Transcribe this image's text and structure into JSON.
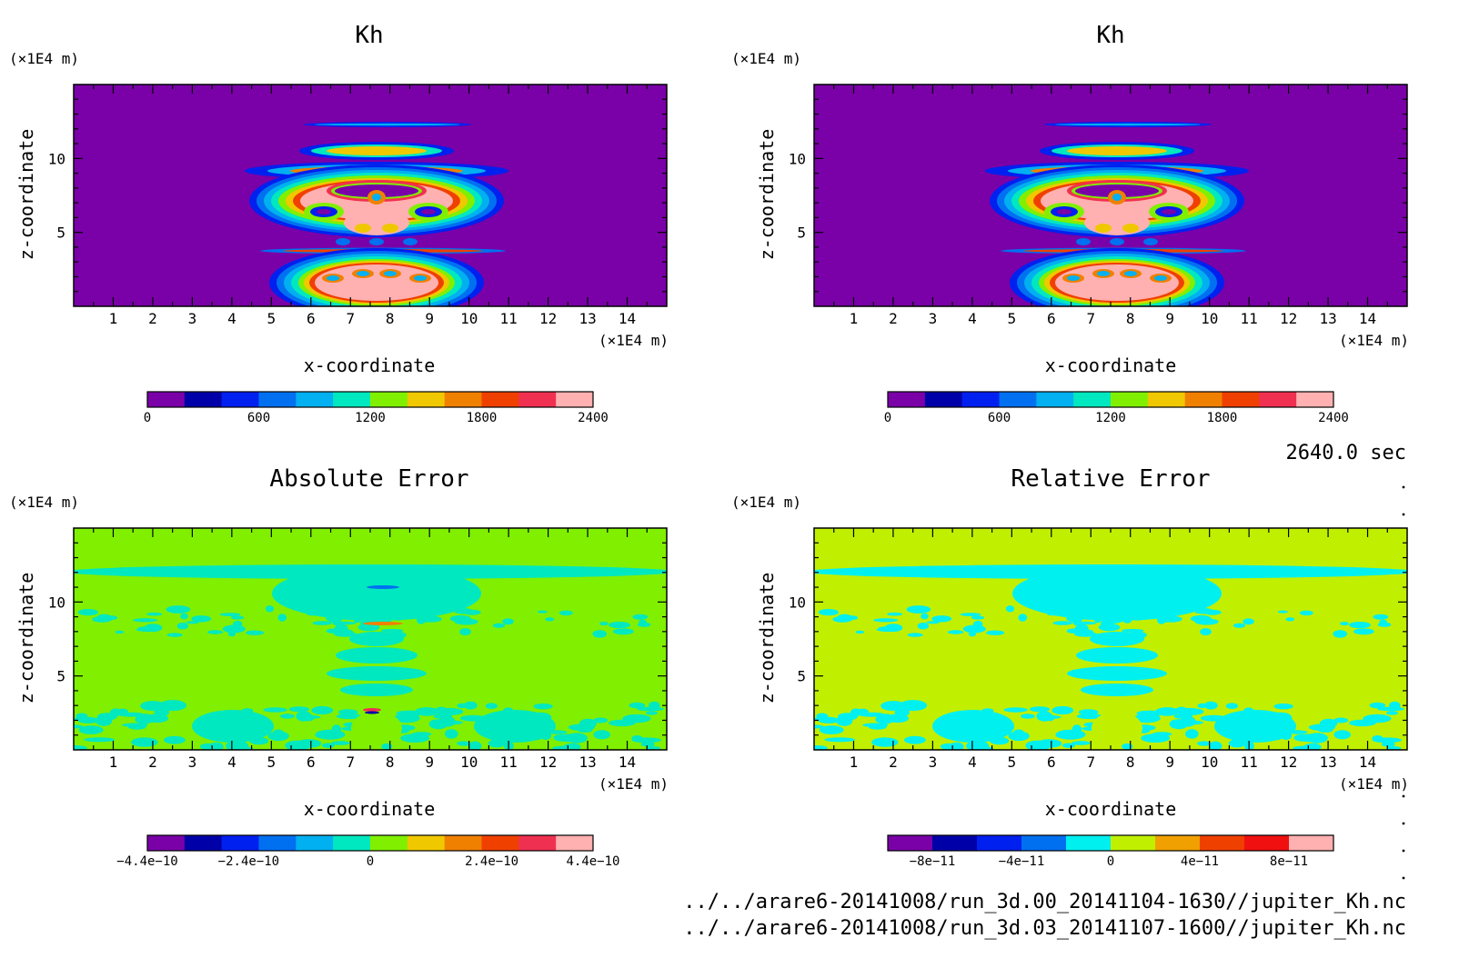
{
  "time_label": "2640.0 sec",
  "file_paths": [
    "../../arare6-20141008/run_3d.00_20141104-1630//jupiter_Kh.nc",
    "../../arare6-20141008/run_3d.03_20141107-1600//jupiter_Kh.nc"
  ],
  "colors": {
    "kh_levels": [
      "#7a00a8",
      "#0000a8",
      "#0020f0",
      "#0070f0",
      "#00b0f0",
      "#00e8c0",
      "#80f000",
      "#f0c800",
      "#f08000",
      "#f04000",
      "#f03050",
      "#ffb0b0"
    ],
    "abs_levels": [
      "#7a00a8",
      "#0000a8",
      "#0020f0",
      "#0070f0",
      "#00b0f0",
      "#00e8c0",
      "#80f000",
      "#f0c800",
      "#f08000",
      "#f04000",
      "#f03050",
      "#ffb0b0"
    ],
    "rel_levels": [
      "#7a00a8",
      "#0000a8",
      "#0020f0",
      "#0070f0",
      "#00f0f0",
      "#c0f000",
      "#f0a000",
      "#f04000",
      "#f01010",
      "#ffb0b0"
    ]
  },
  "chart_data": [
    {
      "type": "heatmap",
      "title": "Kh",
      "xlabel": "x-coordinate",
      "ylabel": "z-coordinate",
      "x_unit": "(×1E4 m)",
      "y_unit": "(×1E4 m)",
      "xlim": [
        0,
        15
      ],
      "ylim": [
        0,
        15
      ],
      "xticks": [
        1,
        2,
        3,
        4,
        5,
        6,
        7,
        8,
        9,
        10,
        11,
        12,
        13,
        14
      ],
      "yticks": [
        5,
        10
      ],
      "colorbar": {
        "range": [
          0,
          2400
        ],
        "levels": 12,
        "tick_values": [
          0,
          600,
          1200,
          1800,
          2400
        ],
        "tick_labels": [
          "0",
          "600",
          "1200",
          "1800",
          "2400"
        ]
      }
    },
    {
      "type": "heatmap",
      "title": "Kh",
      "xlabel": "x-coordinate",
      "ylabel": "z-coordinate",
      "x_unit": "(×1E4 m)",
      "y_unit": "(×1E4 m)",
      "xlim": [
        0,
        15
      ],
      "ylim": [
        0,
        15
      ],
      "xticks": [
        1,
        2,
        3,
        4,
        5,
        6,
        7,
        8,
        9,
        10,
        11,
        12,
        13,
        14
      ],
      "yticks": [
        5,
        10
      ],
      "colorbar": {
        "range": [
          0,
          2400
        ],
        "levels": 12,
        "tick_values": [
          0,
          600,
          1200,
          1800,
          2400
        ],
        "tick_labels": [
          "0",
          "600",
          "1200",
          "1800",
          "2400"
        ]
      }
    },
    {
      "type": "heatmap",
      "title": "Absolute Error",
      "xlabel": "x-coordinate",
      "ylabel": "z-coordinate",
      "x_unit": "(×1E4 m)",
      "y_unit": "(×1E4 m)",
      "xlim": [
        0,
        15
      ],
      "ylim": [
        0,
        15
      ],
      "xticks": [
        1,
        2,
        3,
        4,
        5,
        6,
        7,
        8,
        9,
        10,
        11,
        12,
        13,
        14
      ],
      "yticks": [
        5,
        10
      ],
      "colorbar": {
        "range": [
          -4.4e-10,
          4.4e-10
        ],
        "levels": 12,
        "tick_values": [
          -4.4e-10,
          -2.4e-10,
          0,
          2.4e-10,
          4.4e-10
        ],
        "tick_labels": [
          "−4.4e−10",
          "−2.4e−10",
          "0",
          "2.4e−10",
          "4.4e−10"
        ]
      }
    },
    {
      "type": "heatmap",
      "title": "Relative Error",
      "xlabel": "x-coordinate",
      "ylabel": "z-coordinate",
      "x_unit": "(×1E4 m)",
      "y_unit": "(×1E4 m)",
      "xlim": [
        0,
        15
      ],
      "ylim": [
        0,
        15
      ],
      "xticks": [
        1,
        2,
        3,
        4,
        5,
        6,
        7,
        8,
        9,
        10,
        11,
        12,
        13,
        14
      ],
      "yticks": [
        5,
        10
      ],
      "colorbar": {
        "range": [
          -1e-10,
          1e-10
        ],
        "levels": 10,
        "tick_values": [
          -8e-11,
          -4e-11,
          0,
          4e-11,
          8e-11
        ],
        "tick_labels": [
          "−8e−11",
          "−4e−11",
          "0",
          "4e−11",
          "8e−11"
        ]
      }
    }
  ]
}
